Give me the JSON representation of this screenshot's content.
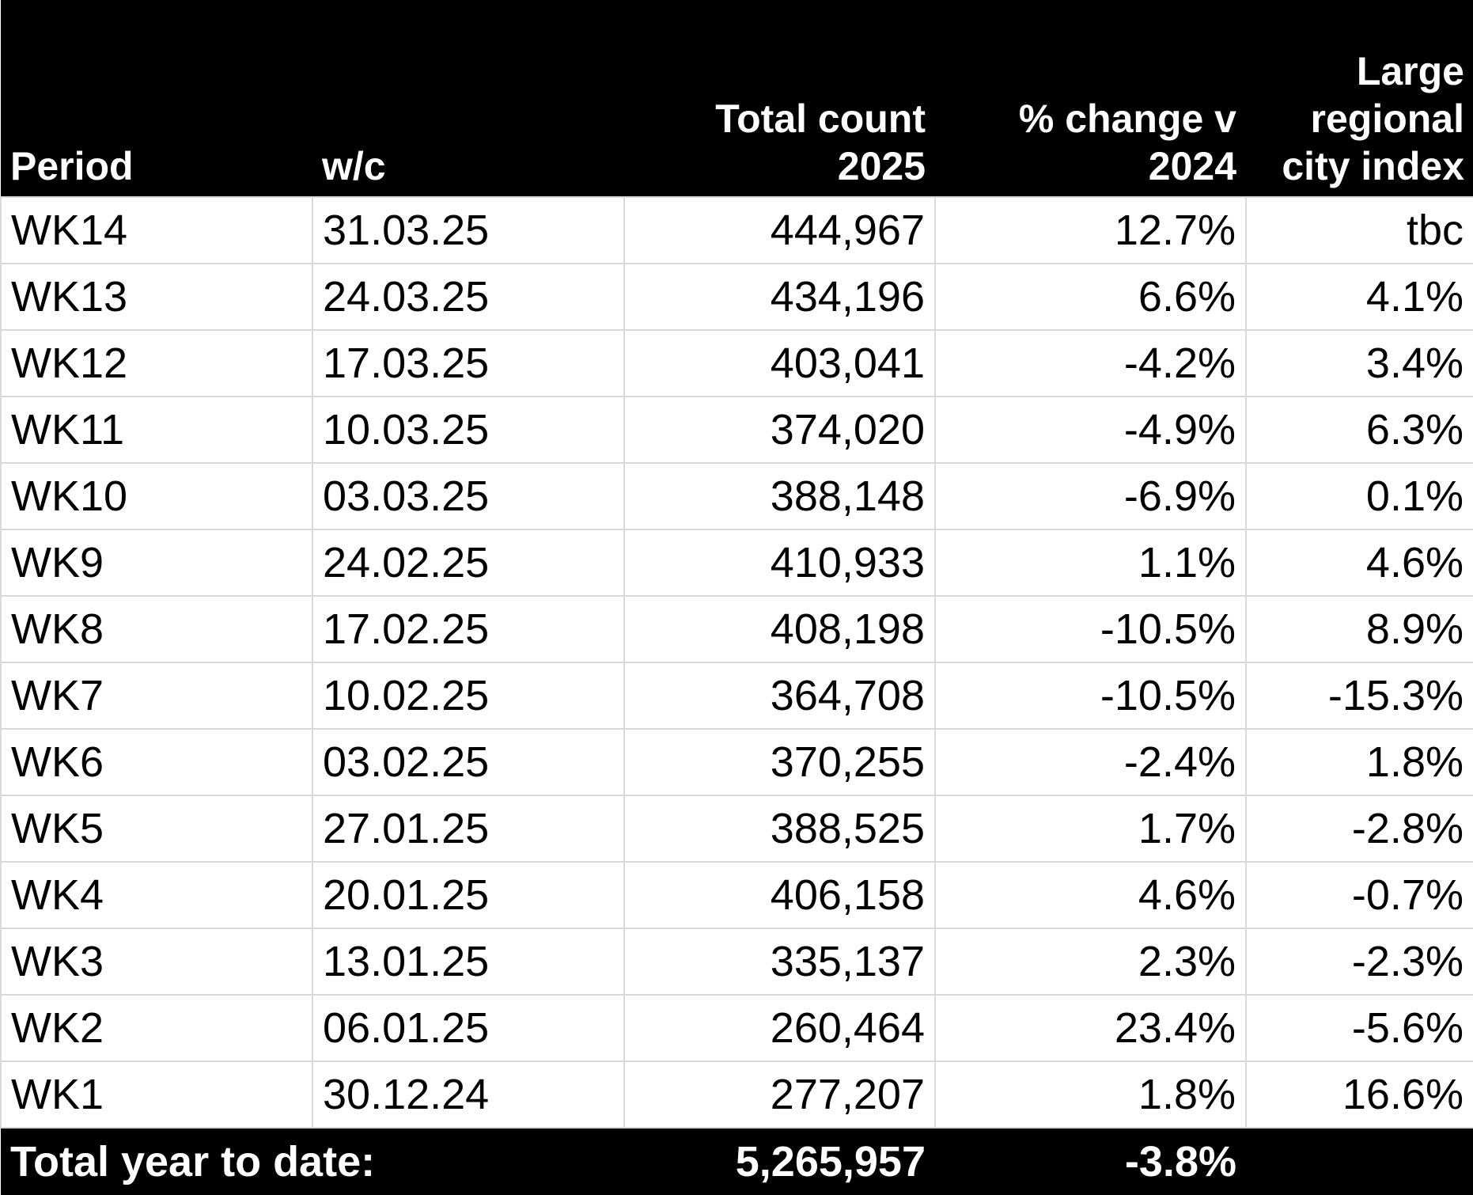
{
  "table": {
    "header": [
      "Period",
      "w/c",
      "Total count 2025",
      "% change v 2024",
      "Large regional city index"
    ],
    "rows": [
      [
        "WK14",
        "31.03.25",
        "444,967",
        "12.7%",
        "tbc"
      ],
      [
        "WK13",
        "24.03.25",
        "434,196",
        "6.6%",
        "4.1%"
      ],
      [
        "WK12",
        "17.03.25",
        "403,041",
        "-4.2%",
        "3.4%"
      ],
      [
        "WK11",
        "10.03.25",
        "374,020",
        "-4.9%",
        "6.3%"
      ],
      [
        "WK10",
        "03.03.25",
        "388,148",
        "-6.9%",
        "0.1%"
      ],
      [
        "WK9",
        "24.02.25",
        "410,933",
        "1.1%",
        "4.6%"
      ],
      [
        "WK8",
        "17.02.25",
        "408,198",
        "-10.5%",
        "8.9%"
      ],
      [
        "WK7",
        "10.02.25",
        "364,708",
        "-10.5%",
        "-15.3%"
      ],
      [
        "WK6",
        "03.02.25",
        "370,255",
        "-2.4%",
        "1.8%"
      ],
      [
        "WK5",
        "27.01.25",
        "388,525",
        "1.7%",
        "-2.8%"
      ],
      [
        "WK4",
        "20.01.25",
        "406,158",
        "4.6%",
        "-0.7%"
      ],
      [
        "WK3",
        "13.01.25",
        "335,137",
        "2.3%",
        "-2.3%"
      ],
      [
        "WK2",
        "06.01.25",
        "260,464",
        "23.4%",
        "-5.6%"
      ],
      [
        "WK1",
        "30.12.24",
        "277,207",
        "1.8%",
        "16.6%"
      ]
    ],
    "footer": [
      "Total year to date:",
      "5,265,957",
      "-3.8%"
    ]
  }
}
